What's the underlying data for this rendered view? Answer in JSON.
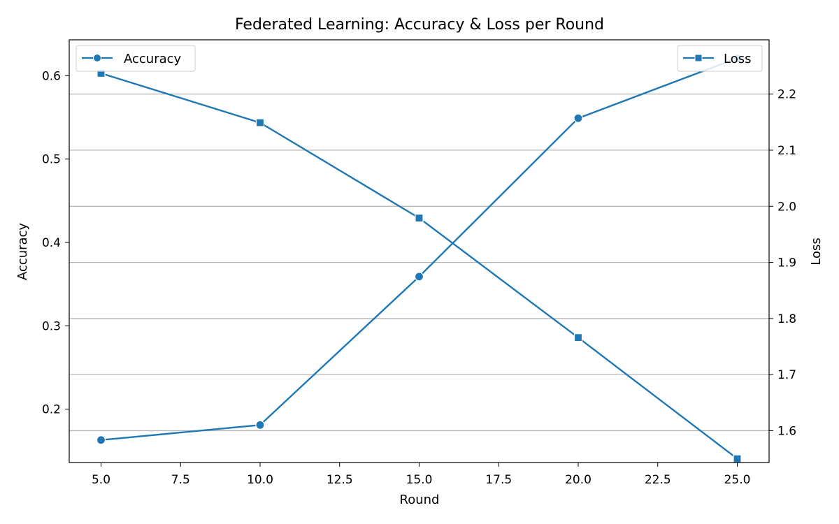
{
  "chart_data": {
    "type": "line",
    "title": "Federated Learning: Accuracy & Loss per Round",
    "xlabel": "Round",
    "ylabel_left": "Accuracy",
    "ylabel_right": "Loss",
    "x": [
      5,
      10,
      15,
      20,
      25
    ],
    "xlim": [
      4.0,
      26.0
    ],
    "ylim_left": [
      0.136,
      0.643
    ],
    "ylim_right": [
      1.5433,
      2.2967
    ],
    "x_ticks": [
      "5.0",
      "7.5",
      "10.0",
      "12.5",
      "15.0",
      "17.5",
      "20.0",
      "22.5",
      "25.0"
    ],
    "y_ticks_left": [
      "0.2",
      "0.3",
      "0.4",
      "0.5",
      "0.6"
    ],
    "y_ticks_right": [
      "1.6",
      "1.7",
      "1.8",
      "1.9",
      "2.0",
      "2.1",
      "2.2"
    ],
    "grid": "horizontal (right axis)",
    "series": [
      {
        "name": "Accuracy",
        "axis": "left",
        "marker": "circle",
        "color": "#1f77b4",
        "values": [
          0.163,
          0.181,
          0.359,
          0.549,
          0.621
        ]
      },
      {
        "name": "Loss",
        "axis": "right",
        "marker": "square",
        "color": "#1f77b4",
        "values": [
          2.237,
          2.149,
          1.979,
          1.766,
          1.55
        ]
      }
    ],
    "legends": [
      {
        "series": "Accuracy",
        "placement": "upper left"
      },
      {
        "series": "Loss",
        "placement": "upper right"
      }
    ]
  }
}
